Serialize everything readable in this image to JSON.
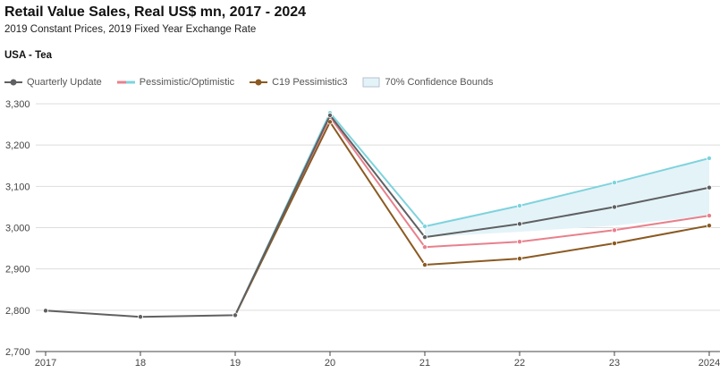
{
  "header": {
    "title": "Retail Value Sales, Real US$ mn, 2017 - 2024",
    "subtitle": "2019 Constant Prices, 2019 Fixed Year Exchange Rate",
    "market": "USA - Tea"
  },
  "legend": {
    "quarterly": "Quarterly Update",
    "pess_opt": "Pessimistic/Optimistic",
    "c19": "C19 Pessimistic3",
    "bounds": "70% Confidence Bounds"
  },
  "colors": {
    "quarterly": "#5f6062",
    "pessimistic": "#e8808c",
    "optimistic": "#7ed3dd",
    "c19": "#8b5a22",
    "bounds_fill": "#e4f3f8",
    "bounds_stroke": "#b6c2cf",
    "grid": "#dddddd",
    "axis": "#444444"
  },
  "chart_data": {
    "type": "line",
    "categories": [
      "2017",
      "18",
      "19",
      "20",
      "21",
      "22",
      "23",
      "2024"
    ],
    "ylim": [
      2700,
      3300
    ],
    "yticks": [
      "2,700",
      "2,800",
      "2,900",
      "3,000",
      "3,100",
      "3,200",
      "3,300"
    ],
    "ytick_values": [
      2700,
      2800,
      2900,
      3000,
      3100,
      3200,
      3300
    ],
    "grid": "horizontal",
    "legend_position": "top-left",
    "series": [
      {
        "name": "Optimistic",
        "values": [
          null,
          null,
          2788,
          3278,
          3003,
          3053,
          3109,
          3168
        ]
      },
      {
        "name": "Pessimistic",
        "values": [
          null,
          null,
          2788,
          3268,
          2953,
          2966,
          2994,
          3029
        ]
      },
      {
        "name": "C19 Pessimistic3",
        "values": [
          null,
          null,
          2788,
          3256,
          2910,
          2925,
          2962,
          3005
        ]
      },
      {
        "name": "Quarterly Update",
        "values": [
          2799,
          2784,
          2788,
          3272,
          2977,
          3009,
          3050,
          3097
        ]
      }
    ],
    "confidence_bounds": {
      "name": "70% Confidence Bounds",
      "upper": [
        null,
        null,
        null,
        null,
        3003,
        3053,
        3109,
        3168
      ],
      "lower": [
        null,
        null,
        null,
        null,
        2977,
        2990,
        3005,
        3029
      ]
    }
  }
}
